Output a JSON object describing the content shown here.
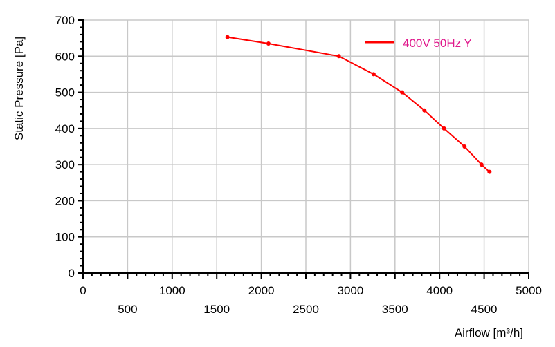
{
  "chart_data": {
    "type": "line",
    "xlabel": "Airflow [m³/h]",
    "ylabel": "Static Pressure [Pa]",
    "xlim": [
      0,
      5000
    ],
    "ylim": [
      0,
      700
    ],
    "x_ticks_row1": [
      "0",
      "1000",
      "2000",
      "3000",
      "4000",
      "5000"
    ],
    "x_ticks_row2": [
      "500",
      "1500",
      "2500",
      "3500",
      "4500"
    ],
    "y_ticks": [
      "0",
      "100",
      "200",
      "300",
      "400",
      "500",
      "600",
      "700"
    ],
    "grid": true,
    "legend_position": "top-right",
    "series": [
      {
        "name": "400V 50Hz Y",
        "color": "#ff0000",
        "label_color": "#e0198c",
        "x": [
          1620,
          2080,
          2870,
          3260,
          3580,
          3830,
          4050,
          4280,
          4470,
          4560
        ],
        "y": [
          653,
          635,
          600,
          550,
          500,
          450,
          400,
          350,
          300,
          280
        ]
      }
    ]
  }
}
